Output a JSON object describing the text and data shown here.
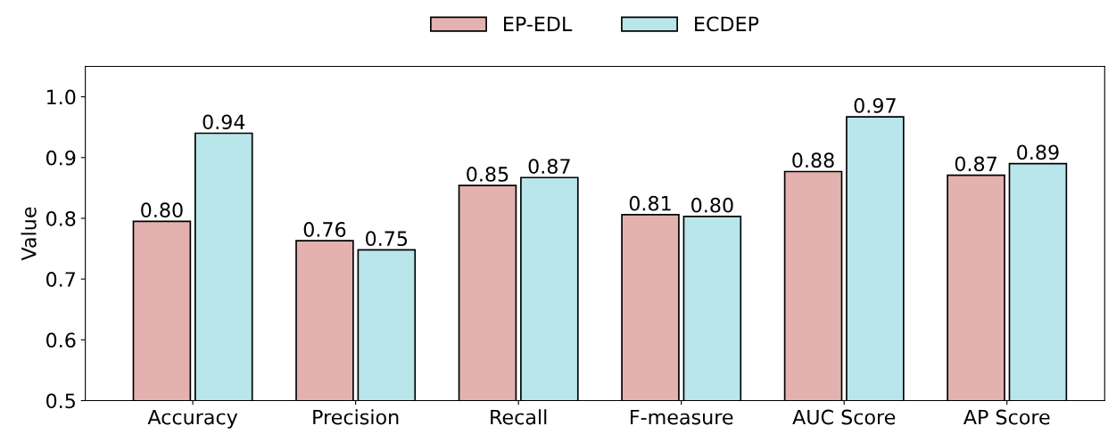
{
  "chart_data": {
    "type": "bar",
    "ylabel": "Value",
    "categories": [
      "Accuracy",
      "Precision",
      "Recall",
      "F-measure",
      "AUC Score",
      "AP Score"
    ],
    "series": [
      {
        "name": "EP-EDL",
        "color": "#e3b1ae",
        "values": [
          0.795,
          0.763,
          0.854,
          0.806,
          0.877,
          0.871
        ],
        "value_labels": [
          "0.80",
          "0.76",
          "0.85",
          "0.81",
          "0.88",
          "0.87"
        ]
      },
      {
        "name": "ECDEP",
        "color": "#b8e6ea",
        "values": [
          0.94,
          0.748,
          0.867,
          0.803,
          0.967,
          0.89
        ],
        "value_labels": [
          "0.94",
          "0.75",
          "0.87",
          "0.80",
          "0.97",
          "0.89"
        ]
      }
    ],
    "ylim": [
      0.5,
      1.05
    ],
    "yticks": [
      0.5,
      0.6,
      0.7,
      0.8,
      0.9,
      {
        "value": 1,
        "label": "1.0"
      }
    ],
    "grid": false,
    "legend": "top"
  }
}
